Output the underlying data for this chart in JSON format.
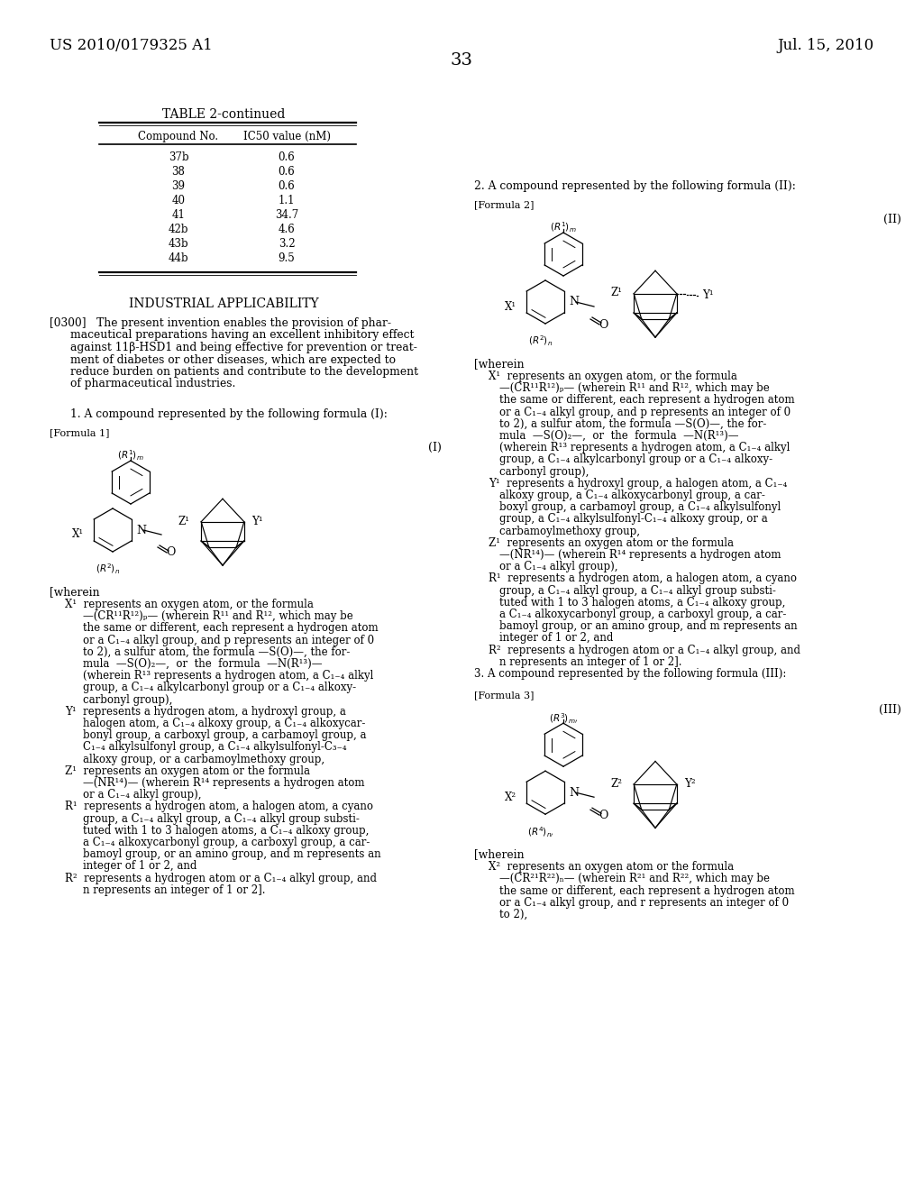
{
  "page_number": "33",
  "patent_left": "US 2010/0179325 A1",
  "patent_right": "Jul. 15, 2010",
  "background_color": "#ffffff",
  "text_color": "#1a1a1a",
  "table_title": "TABLE 2-continued",
  "table_headers": [
    "Compound No.",
    "IC50 value (nM)"
  ],
  "table_data": [
    [
      "37b",
      "0.6"
    ],
    [
      "38",
      "0.6"
    ],
    [
      "39",
      "0.6"
    ],
    [
      "40",
      "1.1"
    ],
    [
      "41",
      "34.7"
    ],
    [
      "42b",
      "4.6"
    ],
    [
      "43b",
      "3.2"
    ],
    [
      "44b",
      "9.5"
    ]
  ],
  "section_heading": "INDUSTRIAL APPLICABILITY",
  "claim1_text": "    1. A compound represented by the following formula (I):",
  "formula1_label": "[Formula 1]",
  "formula1_roman": "(I)",
  "claim2_text": "2. A compound represented by the following formula (II):",
  "formula2_label": "[Formula 2]",
  "formula2_roman": "(II)",
  "claim3_text": "3. A compound represented by the following formula (III):",
  "formula3_label": "[Formula 3]",
  "formula3_roman": "(III)"
}
